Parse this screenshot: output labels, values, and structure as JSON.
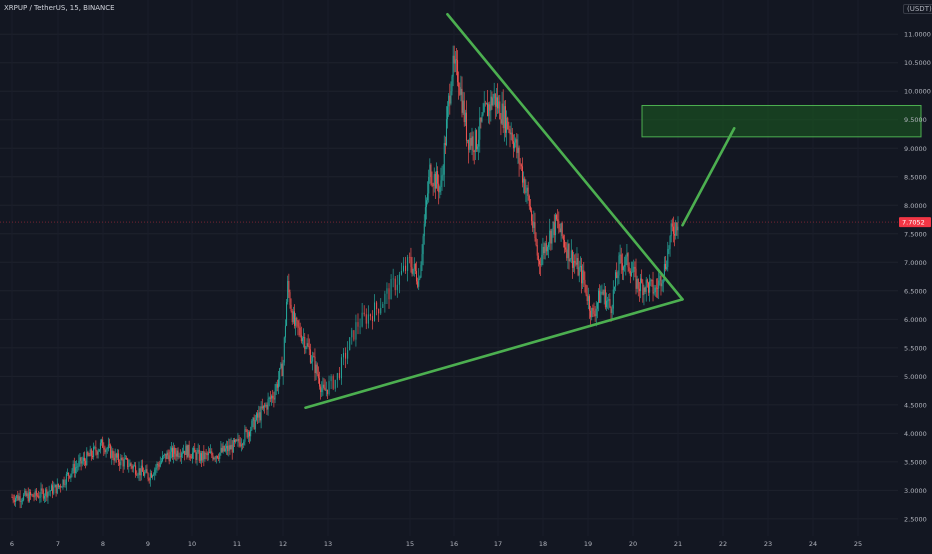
{
  "header": {
    "symbol_line": "XRPUP / TetherUS, 15, BINANCE",
    "unit": "(USDT)"
  },
  "colors": {
    "background": "#131722",
    "up": "#26a69a",
    "down": "#ef5350",
    "trendline": "#4caf50",
    "zone_fill": "#1b5e20",
    "price_label": "#f23645",
    "axis_text": "#b2b5be"
  },
  "chart_data": {
    "type": "candlestick",
    "x_axis_label": "",
    "y_axis_label": "",
    "x_ticks": [
      "6",
      "7",
      "8",
      "9",
      "10",
      "11",
      "12",
      "13",
      "15",
      "16",
      "17",
      "18",
      "19",
      "20",
      "21",
      "22",
      "23",
      "24",
      "25"
    ],
    "y_ticks": [
      "2.5000",
      "3.0000",
      "3.5000",
      "4.0000",
      "4.5000",
      "5.0000",
      "5.5000",
      "6.0000",
      "6.5000",
      "7.0000",
      "7.5000",
      "8.0000",
      "8.5000",
      "9.0000",
      "9.5000",
      "10.0000",
      "10.5000",
      "11.0000"
    ],
    "y_range": [
      2.2,
      11.6
    ],
    "last_price": "7.7052",
    "price_path": [
      [
        0,
        2.88
      ],
      [
        0.5,
        2.9
      ],
      [
        1.0,
        3.05
      ],
      [
        1.3,
        3.35
      ],
      [
        1.7,
        3.6
      ],
      [
        2.0,
        3.82
      ],
      [
        2.3,
        3.55
      ],
      [
        2.6,
        3.45
      ],
      [
        3.0,
        3.25
      ],
      [
        3.4,
        3.6
      ],
      [
        3.8,
        3.72
      ],
      [
        4.2,
        3.58
      ],
      [
        4.6,
        3.65
      ],
      [
        5.0,
        3.8
      ],
      [
        5.3,
        4.1
      ],
      [
        5.6,
        4.45
      ],
      [
        5.8,
        4.7
      ],
      [
        6.0,
        5.2
      ],
      [
        6.1,
        6.6
      ],
      [
        6.25,
        5.9
      ],
      [
        6.45,
        5.7
      ],
      [
        6.7,
        5.2
      ],
      [
        6.9,
        4.7
      ],
      [
        7.1,
        4.95
      ],
      [
        7.35,
        5.9
      ],
      [
        7.6,
        6.2
      ],
      [
        7.8,
        6.6
      ],
      [
        8.0,
        7.0
      ],
      [
        8.2,
        6.7
      ],
      [
        8.45,
        8.6
      ],
      [
        8.7,
        8.3
      ],
      [
        8.95,
        10.4
      ],
      [
        9.1,
        10.3
      ],
      [
        9.3,
        9.2
      ],
      [
        9.5,
        9.1
      ],
      [
        9.7,
        9.6
      ],
      [
        9.9,
        9.9
      ],
      [
        10.1,
        9.6
      ],
      [
        10.3,
        9.3
      ],
      [
        10.5,
        8.7
      ],
      [
        10.7,
        8.0
      ],
      [
        10.9,
        7.0
      ],
      [
        11.1,
        7.4
      ],
      [
        11.3,
        7.7
      ],
      [
        11.5,
        7.3
      ],
      [
        11.7,
        7.0
      ],
      [
        11.9,
        6.7
      ],
      [
        12.1,
        6.05
      ],
      [
        12.3,
        6.5
      ],
      [
        12.5,
        6.2
      ],
      [
        12.7,
        7.0
      ],
      [
        12.9,
        7.0
      ],
      [
        13.1,
        6.6
      ],
      [
        13.3,
        6.6
      ],
      [
        13.5,
        6.5
      ],
      [
        13.7,
        6.9
      ],
      [
        13.85,
        7.5
      ],
      [
        14.0,
        7.75
      ]
    ],
    "drawings": {
      "upper_trendline": {
        "x": [
          8.85,
          14.1
        ],
        "y": [
          11.35,
          6.35
        ]
      },
      "lower_trendline": {
        "x": [
          6.5,
          14.1
        ],
        "y": [
          4.45,
          6.35
        ]
      },
      "projection_line": {
        "x": [
          14.1,
          15.25
        ],
        "y": [
          7.65,
          9.35
        ]
      },
      "target_zone": {
        "x": [
          13.2,
          19.4
        ],
        "y": [
          9.2,
          9.75
        ]
      }
    }
  }
}
